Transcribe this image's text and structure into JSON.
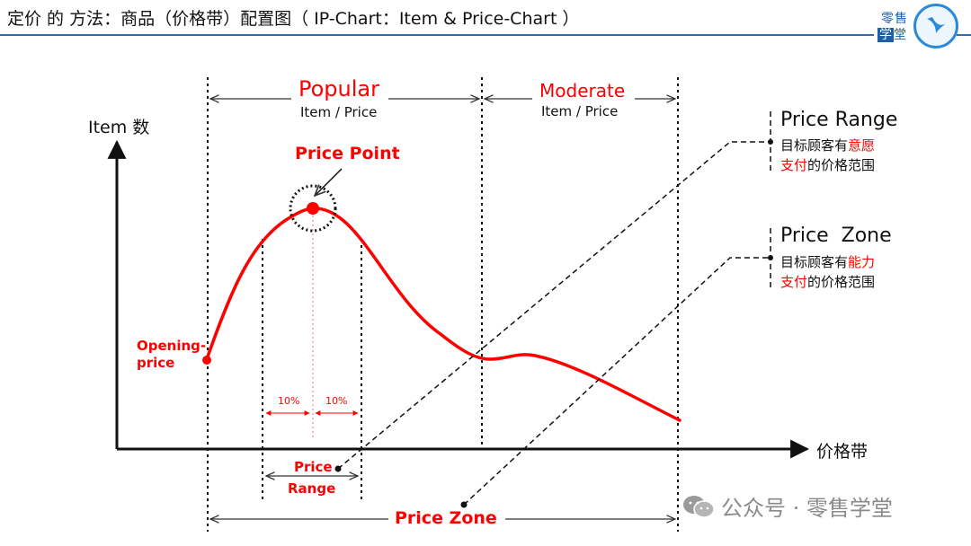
{
  "header": {
    "title": "定价 的 方法：商品（价格带）配置图（ IP-Chart：Item & Price-Chart ）",
    "logo_line1": "零售",
    "logo_line2_box": "学",
    "logo_line2_rest": "堂"
  },
  "diagram": {
    "y_axis_label": "Item 数",
    "x_axis_label": "价格带",
    "popular": {
      "title": "Popular",
      "sub": "Item / Price"
    },
    "moderate": {
      "title": "Moderate",
      "sub": "Item / Price"
    },
    "price_point": "Price Point",
    "opening_price_line1": "Opening-",
    "opening_price_line2": "price",
    "pct_left": "10%",
    "pct_right": "10%",
    "price_range_bottom_line1": "Price",
    "price_range_bottom_line2": "Range",
    "price_zone_bottom": "Price Zone",
    "legend_price_range": {
      "title": "Price Range",
      "line1_prefix": "目标顾客有",
      "line1_highlight": "意愿",
      "line2_highlight": "支付",
      "line2_suffix": "的价格范围"
    },
    "legend_price_zone": {
      "title": "Price  Zone",
      "line1_prefix": "目标顾客有",
      "line1_highlight": "能力",
      "line2_highlight": "支付",
      "line2_suffix": "的价格范围"
    }
  },
  "watermark": {
    "text": "公众号 · 零售学堂",
    "icon": "wechat-icon"
  },
  "colors": {
    "accent_red": "#ff0000",
    "rule_blue": "#2a6fb5",
    "dark": "#111111"
  }
}
